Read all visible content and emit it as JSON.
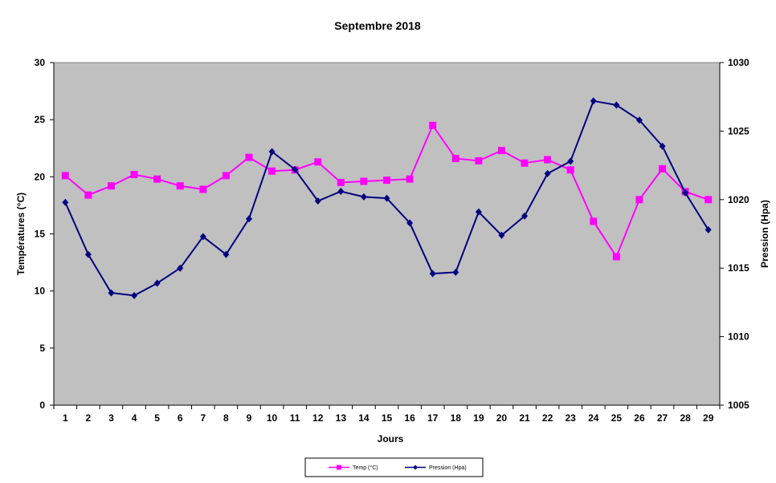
{
  "chart_data": {
    "type": "line",
    "title": "Septembre 2018",
    "xlabel": "Jours",
    "ylabel": "Températures (°C)",
    "y2label": "Pression (Hpa)",
    "categories": [
      1,
      2,
      3,
      4,
      5,
      6,
      7,
      8,
      9,
      10,
      11,
      12,
      13,
      14,
      15,
      16,
      17,
      18,
      19,
      20,
      21,
      22,
      23,
      24,
      25,
      26,
      27,
      28,
      29
    ],
    "ylim": [
      0,
      30
    ],
    "y2lim": [
      1005,
      1030
    ],
    "yticks": [
      0,
      5,
      10,
      15,
      20,
      25,
      30
    ],
    "y2ticks": [
      1005,
      1010,
      1015,
      1020,
      1025,
      1030
    ],
    "plot_background": "#c0c0c0",
    "grid": false,
    "legend_position": "bottom",
    "series": [
      {
        "name": "Temp (°C)",
        "axis": "left",
        "color": "#ff00ff",
        "marker": "square",
        "values": [
          20.1,
          18.4,
          19.2,
          20.2,
          19.8,
          19.2,
          18.9,
          20.1,
          21.7,
          20.5,
          20.6,
          21.3,
          19.5,
          19.6,
          19.7,
          19.8,
          24.5,
          21.6,
          21.4,
          22.3,
          21.2,
          21.5,
          20.6,
          16.1,
          13.0,
          18.0,
          20.7,
          18.7,
          18.0
        ]
      },
      {
        "name": "Pression (Hpa)",
        "axis": "right",
        "color": "#000080",
        "marker": "diamond",
        "values": [
          1019.8,
          1016.0,
          1013.2,
          1013.0,
          1013.9,
          1015.0,
          1017.3,
          1016.0,
          1018.6,
          1023.5,
          1022.2,
          1019.9,
          1020.6,
          1020.2,
          1020.1,
          1018.3,
          1014.6,
          1014.7,
          1019.1,
          1017.4,
          1018.8,
          1021.9,
          1022.8,
          1027.2,
          1026.9,
          1025.8,
          1023.9,
          1020.5,
          1017.8
        ]
      }
    ]
  }
}
